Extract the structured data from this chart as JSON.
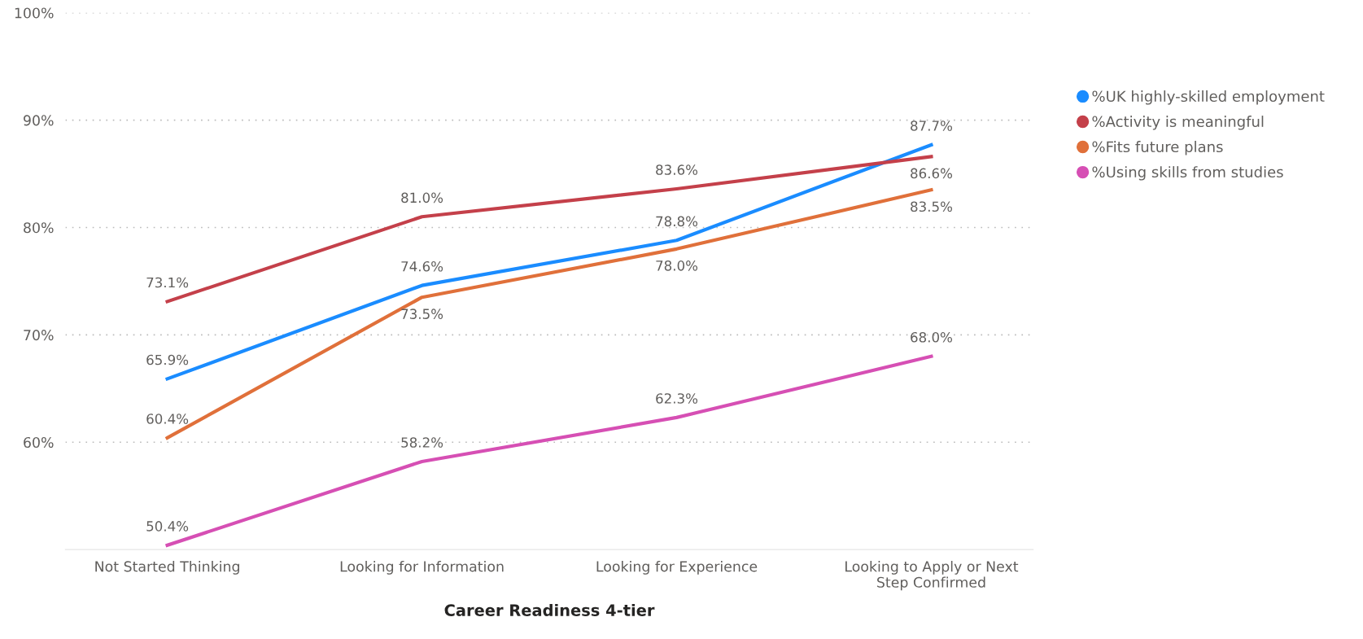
{
  "chart_data": {
    "type": "line",
    "xlabel": "Career Readiness 4-tier",
    "categories": [
      "Not Started Thinking",
      "Looking for Information",
      "Looking for Experience",
      "Looking to Apply or Next Step Confirmed"
    ],
    "series": [
      {
        "name": "%UK highly-skilled employment",
        "color": "#1a8cff",
        "values": [
          65.9,
          74.6,
          78.8,
          87.7
        ],
        "value_labels": [
          "65.9%",
          "74.6%",
          "78.8%",
          "87.7%"
        ]
      },
      {
        "name": "%Activity is meaningful",
        "color": "#c4404a",
        "values": [
          73.1,
          81.0,
          83.6,
          86.6
        ],
        "value_labels": [
          "73.1%",
          "81.0%",
          "83.6%",
          "86.6%"
        ]
      },
      {
        "name": "%Fits future plans",
        "color": "#e0703a",
        "values": [
          60.4,
          73.5,
          78.0,
          83.5
        ],
        "value_labels": [
          "60.4%",
          "73.5%",
          "78.0%",
          "83.5%"
        ]
      },
      {
        "name": "%Using skills from studies",
        "color": "#d64fb4",
        "values": [
          50.4,
          58.2,
          62.3,
          68.0
        ],
        "value_labels": [
          "50.4%",
          "58.2%",
          "62.3%",
          "68.0%"
        ]
      }
    ],
    "ylim": [
      50,
      100
    ],
    "yticks": [
      {
        "value": 60,
        "label": "60%"
      },
      {
        "value": 70,
        "label": "70%"
      },
      {
        "value": 80,
        "label": "80%"
      },
      {
        "value": 90,
        "label": "90%"
      },
      {
        "value": 100,
        "label": "100%"
      }
    ],
    "grid": "y",
    "legend": "right",
    "marker": "none",
    "line_style": "solid"
  }
}
